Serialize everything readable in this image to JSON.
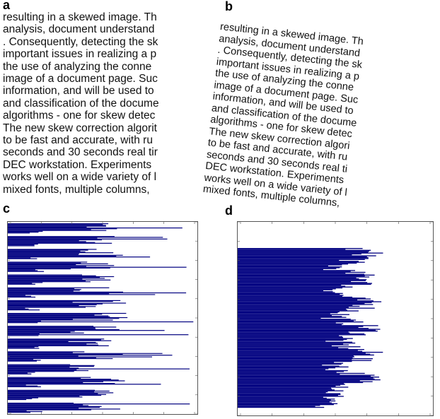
{
  "panels": {
    "a": {
      "label": "a"
    },
    "b": {
      "label": "b"
    },
    "c": {
      "label": "c"
    },
    "d": {
      "label": "d"
    }
  },
  "document_text": {
    "lines_a": [
      "resulting in a skewed image. Th",
      "analysis, document understand",
      ". Consequently, detecting the sk",
      " important issues in realizing a p",
      " the use of analyzing the conne",
      "image of a document page. Suc",
      "information, and will be used to",
      "and classification of the docume",
      " algorithms - one for skew detec",
      "The new skew correction algorit",
      " to be fast and accurate, with ru",
      "seconds and 30 seconds real tir",
      "DEC workstation. Experiments",
      "works well on a wide variety of l",
      " mixed fonts, multiple columns,"
    ],
    "lines_b": [
      "resulting in a skewed image. Th",
      "analysis, document understand",
      ". Consequently, detecting the sk",
      " important issues in realizing a p",
      "the use of analyzing the conne",
      "image of a document page. Suc",
      "information, and will be used to",
      "and classification of the docume",
      " algorithms - one for skew detec",
      "The new skew correction algori",
      " to be fast and accurate, with ru",
      "seconds and 30 seconds real ti",
      "DEC workstation. Experiments",
      "works well on a wide variety of l",
      " mixed fonts, multiple columns,"
    ]
  },
  "chart_data": [
    {
      "type": "bar",
      "panel": "c",
      "orientation": "horizontal",
      "color": "#000080",
      "profile": "row bands of long dense bars alternating with short gaps (15 text lines)",
      "xlim": [
        0,
        300
      ],
      "x_ticks": [
        "0",
        "50",
        "100",
        "150",
        "200",
        "250",
        "300"
      ],
      "bands": 15
    },
    {
      "type": "bar",
      "panel": "d",
      "orientation": "horizontal",
      "color": "#000080",
      "profile": "continuous smeared profile, no gaps (skewed text)",
      "xlim": [
        0,
        300
      ],
      "x_ticks": [
        "0",
        "50",
        "100",
        "150",
        "200",
        "250",
        "300"
      ]
    }
  ]
}
